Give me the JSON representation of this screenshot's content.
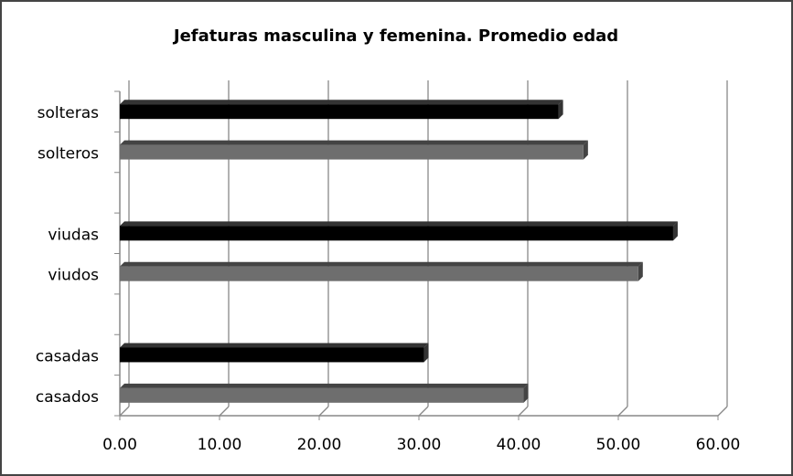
{
  "chart_data": {
    "type": "bar",
    "orientation": "horizontal",
    "title": "Jefaturas masculina y femenina. Promedio edad",
    "categories": [
      "solteras",
      "solteros",
      null,
      "viudas",
      "viudos",
      null,
      "casadas",
      "casados"
    ],
    "values": [
      44,
      46.5,
      null,
      55.5,
      52,
      null,
      30.5,
      40.5
    ],
    "colors": [
      "#000000",
      "#6e6e6e",
      null,
      "#000000",
      "#6e6e6e",
      null,
      "#000000",
      "#6e6e6e"
    ],
    "xlim": [
      0,
      60
    ],
    "xticks": [
      {
        "value": 0,
        "label": "0.00"
      },
      {
        "value": 10,
        "label": "10.00"
      },
      {
        "value": 20,
        "label": "20.00"
      },
      {
        "value": 30,
        "label": "30.00"
      },
      {
        "value": 40,
        "label": "40.00"
      },
      {
        "value": 50,
        "label": "50.00"
      },
      {
        "value": 60,
        "label": "60.00"
      }
    ],
    "grid": true
  }
}
